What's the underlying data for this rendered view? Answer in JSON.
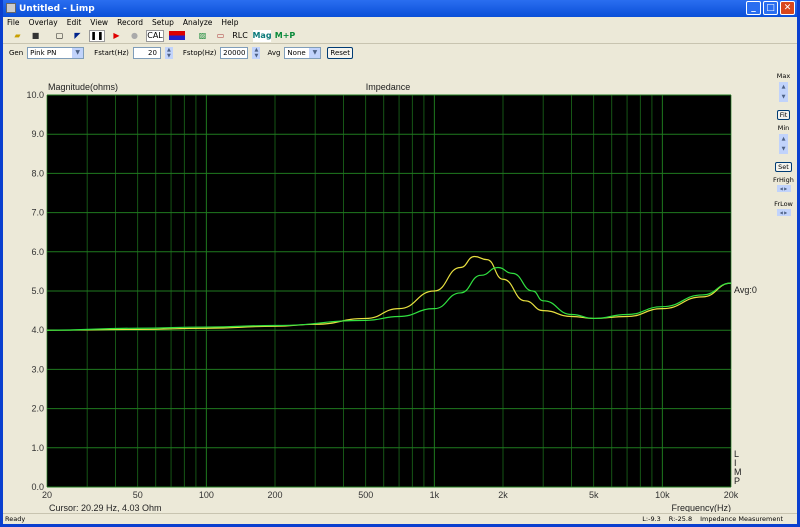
{
  "window": {
    "title": "Untitled - Limp"
  },
  "menu": [
    "File",
    "Overlay",
    "Edit",
    "View",
    "Record",
    "Setup",
    "Analyze",
    "Help"
  ],
  "toolbar": {
    "cal": "CAL",
    "rlc": "RLC",
    "mag": "Mag",
    "mp": "M+P"
  },
  "params": {
    "gen_label": "Gen",
    "gen_value": "Pink PN",
    "fstart_label": "Fstart(Hz)",
    "fstart_value": "20",
    "fstop_label": "Fstop(Hz)",
    "fstop_value": "20000",
    "avg_label": "Avg",
    "avg_value": "None",
    "reset": "Reset"
  },
  "right_panel": {
    "max": "Max",
    "fit": "Fit",
    "min": "Min",
    "set": "Set",
    "frhigh": "FrHigh",
    "frlow": "FrLow"
  },
  "plot": {
    "cursor": "Cursor: 20.29 Hz, 4.03 Ohm",
    "avg_label": "Avg:0",
    "limp_vertical": "LIMP",
    "background": "#000000",
    "grid_color": "#1f7a1f"
  },
  "chart_data": {
    "type": "line",
    "title": "Impedance",
    "ylabel": "Magnitude(ohms)",
    "xlabel": "Frequency(Hz)",
    "xscale": "log",
    "xlim": [
      20,
      20000
    ],
    "ylim": [
      0,
      10
    ],
    "grid": true,
    "xticks": [
      {
        "v": 20,
        "l": "20"
      },
      {
        "v": 50,
        "l": "50"
      },
      {
        "v": 100,
        "l": "100"
      },
      {
        "v": 200,
        "l": "200"
      },
      {
        "v": 500,
        "l": "500"
      },
      {
        "v": 1000,
        "l": "1k"
      },
      {
        "v": 2000,
        "l": "2k"
      },
      {
        "v": 5000,
        "l": "5k"
      },
      {
        "v": 10000,
        "l": "10k"
      },
      {
        "v": 20000,
        "l": "20k"
      }
    ],
    "yticks": [
      "0.0",
      "1.0",
      "2.0",
      "3.0",
      "4.0",
      "5.0",
      "6.0",
      "7.0",
      "8.0",
      "9.0",
      "10.0"
    ],
    "series": [
      {
        "color": "#e8e040",
        "x": [
          20,
          50,
          100,
          200,
          300,
          500,
          700,
          1000,
          1300,
          1500,
          1700,
          2000,
          2500,
          3000,
          4000,
          5000,
          7000,
          10000,
          15000,
          20000
        ],
        "y": [
          4.0,
          4.02,
          4.05,
          4.1,
          4.15,
          4.3,
          4.55,
          5.0,
          5.6,
          5.88,
          5.8,
          5.3,
          4.75,
          4.5,
          4.35,
          4.3,
          4.35,
          4.55,
          4.85,
          5.2
        ]
      },
      {
        "color": "#30e040",
        "x": [
          20,
          50,
          100,
          200,
          500,
          700,
          1000,
          1300,
          1600,
          1900,
          2200,
          2700,
          3000,
          4000,
          5000,
          7000,
          10000,
          15000,
          20000
        ],
        "y": [
          4.0,
          4.05,
          4.08,
          4.12,
          4.25,
          4.35,
          4.55,
          4.95,
          5.4,
          5.6,
          5.45,
          5.0,
          4.75,
          4.4,
          4.3,
          4.4,
          4.6,
          4.9,
          5.2
        ]
      }
    ]
  },
  "status": {
    "left": "Ready",
    "l": "L:-9.3",
    "r": "R:-25.8",
    "mode": "Impedance Measurement"
  }
}
